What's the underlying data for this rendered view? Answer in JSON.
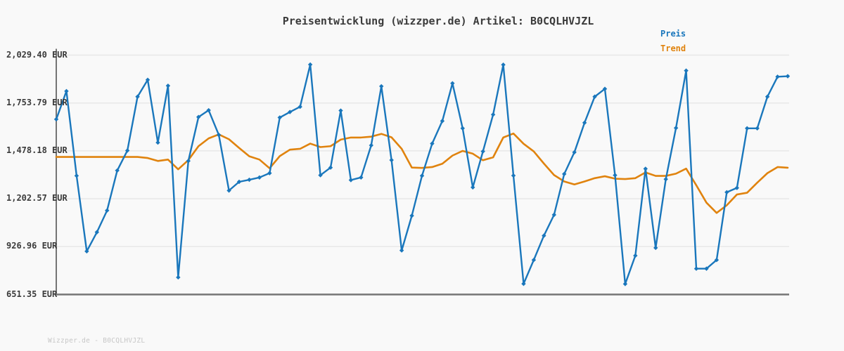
{
  "page": {
    "footer": "Wizzper.de - B0CQLHVJZL"
  },
  "colors": {
    "price": "#1a77bc",
    "trend": "#e0830e",
    "grid": "#e8e8e8",
    "axis": "#757575",
    "text": "#3b3b3b",
    "footer_text": "#c7c7c7",
    "background": "#f9f9f9"
  },
  "chart_data": {
    "type": "line",
    "title": "Preisentwicklung (wizzper.de) Artikel: B0CQLHVJZL",
    "currency": "EUR",
    "grid": "horizontal",
    "legend_position": "top-right",
    "x_axis": {
      "labels_visible": false,
      "num_points": 73
    },
    "y_axis": {
      "tick_labels": [
        "2,029.40 EUR",
        "1,753.79 EUR",
        "1,478.18 EUR",
        "1,202.57 EUR",
        "926.96 EUR",
        "651.35 EUR"
      ],
      "tick_values": [
        2029.4,
        1753.79,
        1478.18,
        1202.57,
        926.96,
        651.35
      ],
      "ylim": [
        651.35,
        2029.4
      ]
    },
    "series": [
      {
        "name": "Preis",
        "color": "#1a77bc",
        "marker": "diamond",
        "values": [
          1660,
          1822,
          1335,
          900,
          1010,
          1135,
          1365,
          1480,
          1790,
          1887,
          1526,
          1853,
          750,
          1420,
          1673,
          1712,
          1570,
          1250,
          1300,
          1312,
          1325,
          1350,
          1670,
          1702,
          1732,
          1975,
          1338,
          1382,
          1710,
          1310,
          1325,
          1510,
          1850,
          1425,
          905,
          1105,
          1335,
          1520,
          1650,
          1867,
          1608,
          1268,
          1475,
          1687,
          1974,
          1336,
          713,
          850,
          990,
          1110,
          1345,
          1470,
          1640,
          1790,
          1835,
          1338,
          712,
          875,
          1375,
          920,
          1315,
          1610,
          1940,
          800,
          800,
          850,
          1240,
          1265,
          1608,
          1608,
          1790,
          1905,
          1908
        ]
      },
      {
        "name": "Trend",
        "color": "#e0830e",
        "marker": "none",
        "values": [
          1443,
          1443,
          1443,
          1443,
          1443,
          1443,
          1443,
          1443,
          1443,
          1437,
          1420,
          1428,
          1372,
          1425,
          1505,
          1550,
          1573,
          1545,
          1495,
          1447,
          1428,
          1378,
          1448,
          1485,
          1490,
          1520,
          1500,
          1505,
          1543,
          1555,
          1555,
          1560,
          1576,
          1556,
          1490,
          1382,
          1380,
          1385,
          1404,
          1451,
          1478,
          1462,
          1424,
          1441,
          1555,
          1578,
          1519,
          1475,
          1405,
          1339,
          1302,
          1285,
          1302,
          1321,
          1332,
          1318,
          1316,
          1321,
          1354,
          1334,
          1334,
          1347,
          1376,
          1280,
          1180,
          1121,
          1165,
          1227,
          1237,
          1295,
          1350,
          1385,
          1381
        ]
      }
    ]
  }
}
